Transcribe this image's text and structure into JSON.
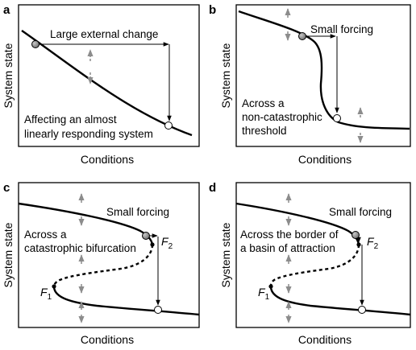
{
  "panels": {
    "a": {
      "label": "a",
      "ylabel": "System state",
      "xlabel": "Conditions",
      "annotations": [
        "Large external change",
        "Affecting an almost",
        "linearly responding system"
      ]
    },
    "b": {
      "label": "b",
      "ylabel": "System state",
      "xlabel": "Conditions",
      "annotations": [
        "Small forcing",
        "Across a",
        "non-catastrophic",
        "threshold"
      ]
    },
    "c": {
      "label": "c",
      "ylabel": "System state",
      "xlabel": "Conditions",
      "annotations": [
        "Small forcing",
        "Across a",
        "catastrophic bifurcation"
      ],
      "points": {
        "f1": "F",
        "f1_sub": "1",
        "f2": "F",
        "f2_sub": "2"
      }
    },
    "d": {
      "label": "d",
      "ylabel": "System state",
      "xlabel": "Conditions",
      "annotations": [
        "Small forcing",
        "Across the border of",
        "a basin of attraction"
      ],
      "points": {
        "f1": "F",
        "f1_sub": "1",
        "f2": "F",
        "f2_sub": "2"
      }
    }
  },
  "colors": {
    "curve": "#000000",
    "frame": "#000000",
    "grey_marker": "#8a8a8a",
    "stability_arrow": "#8c8c8c",
    "open_marker": "#ffffff"
  }
}
